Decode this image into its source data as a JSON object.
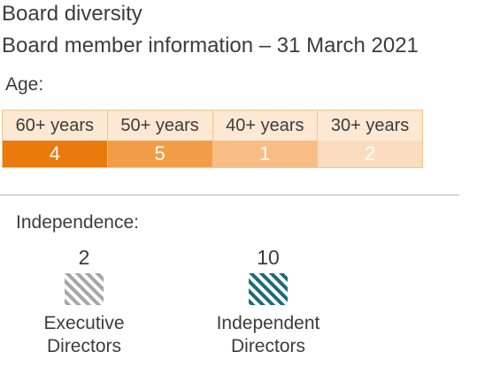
{
  "title": "Board diversity",
  "subtitle": "Board member information – 31 March 2021",
  "colors": {
    "age_60": "#ea7a0c",
    "age_50": "#f39c47",
    "age_40": "#f7bd84",
    "age_30": "#fcdcbf",
    "executive_hatch": "#a6a6a6",
    "independent_hatch": "#1f6a78"
  },
  "chart_data": [
    {
      "type": "table",
      "title": "Age:",
      "categories": [
        "60+ years",
        "50+ years",
        "40+ years",
        "30+ years"
      ],
      "values": [
        4,
        5,
        1,
        2
      ]
    },
    {
      "type": "table",
      "title": "Independence:",
      "categories": [
        "Executive Directors",
        "Independent Directors"
      ],
      "values": [
        2,
        10
      ]
    }
  ],
  "independence": {
    "executive": {
      "count": "2",
      "label_line1": "Executive",
      "label_line2": "Directors"
    },
    "independent": {
      "count": "10",
      "label_line1": "Independent",
      "label_line2": "Directors"
    }
  }
}
